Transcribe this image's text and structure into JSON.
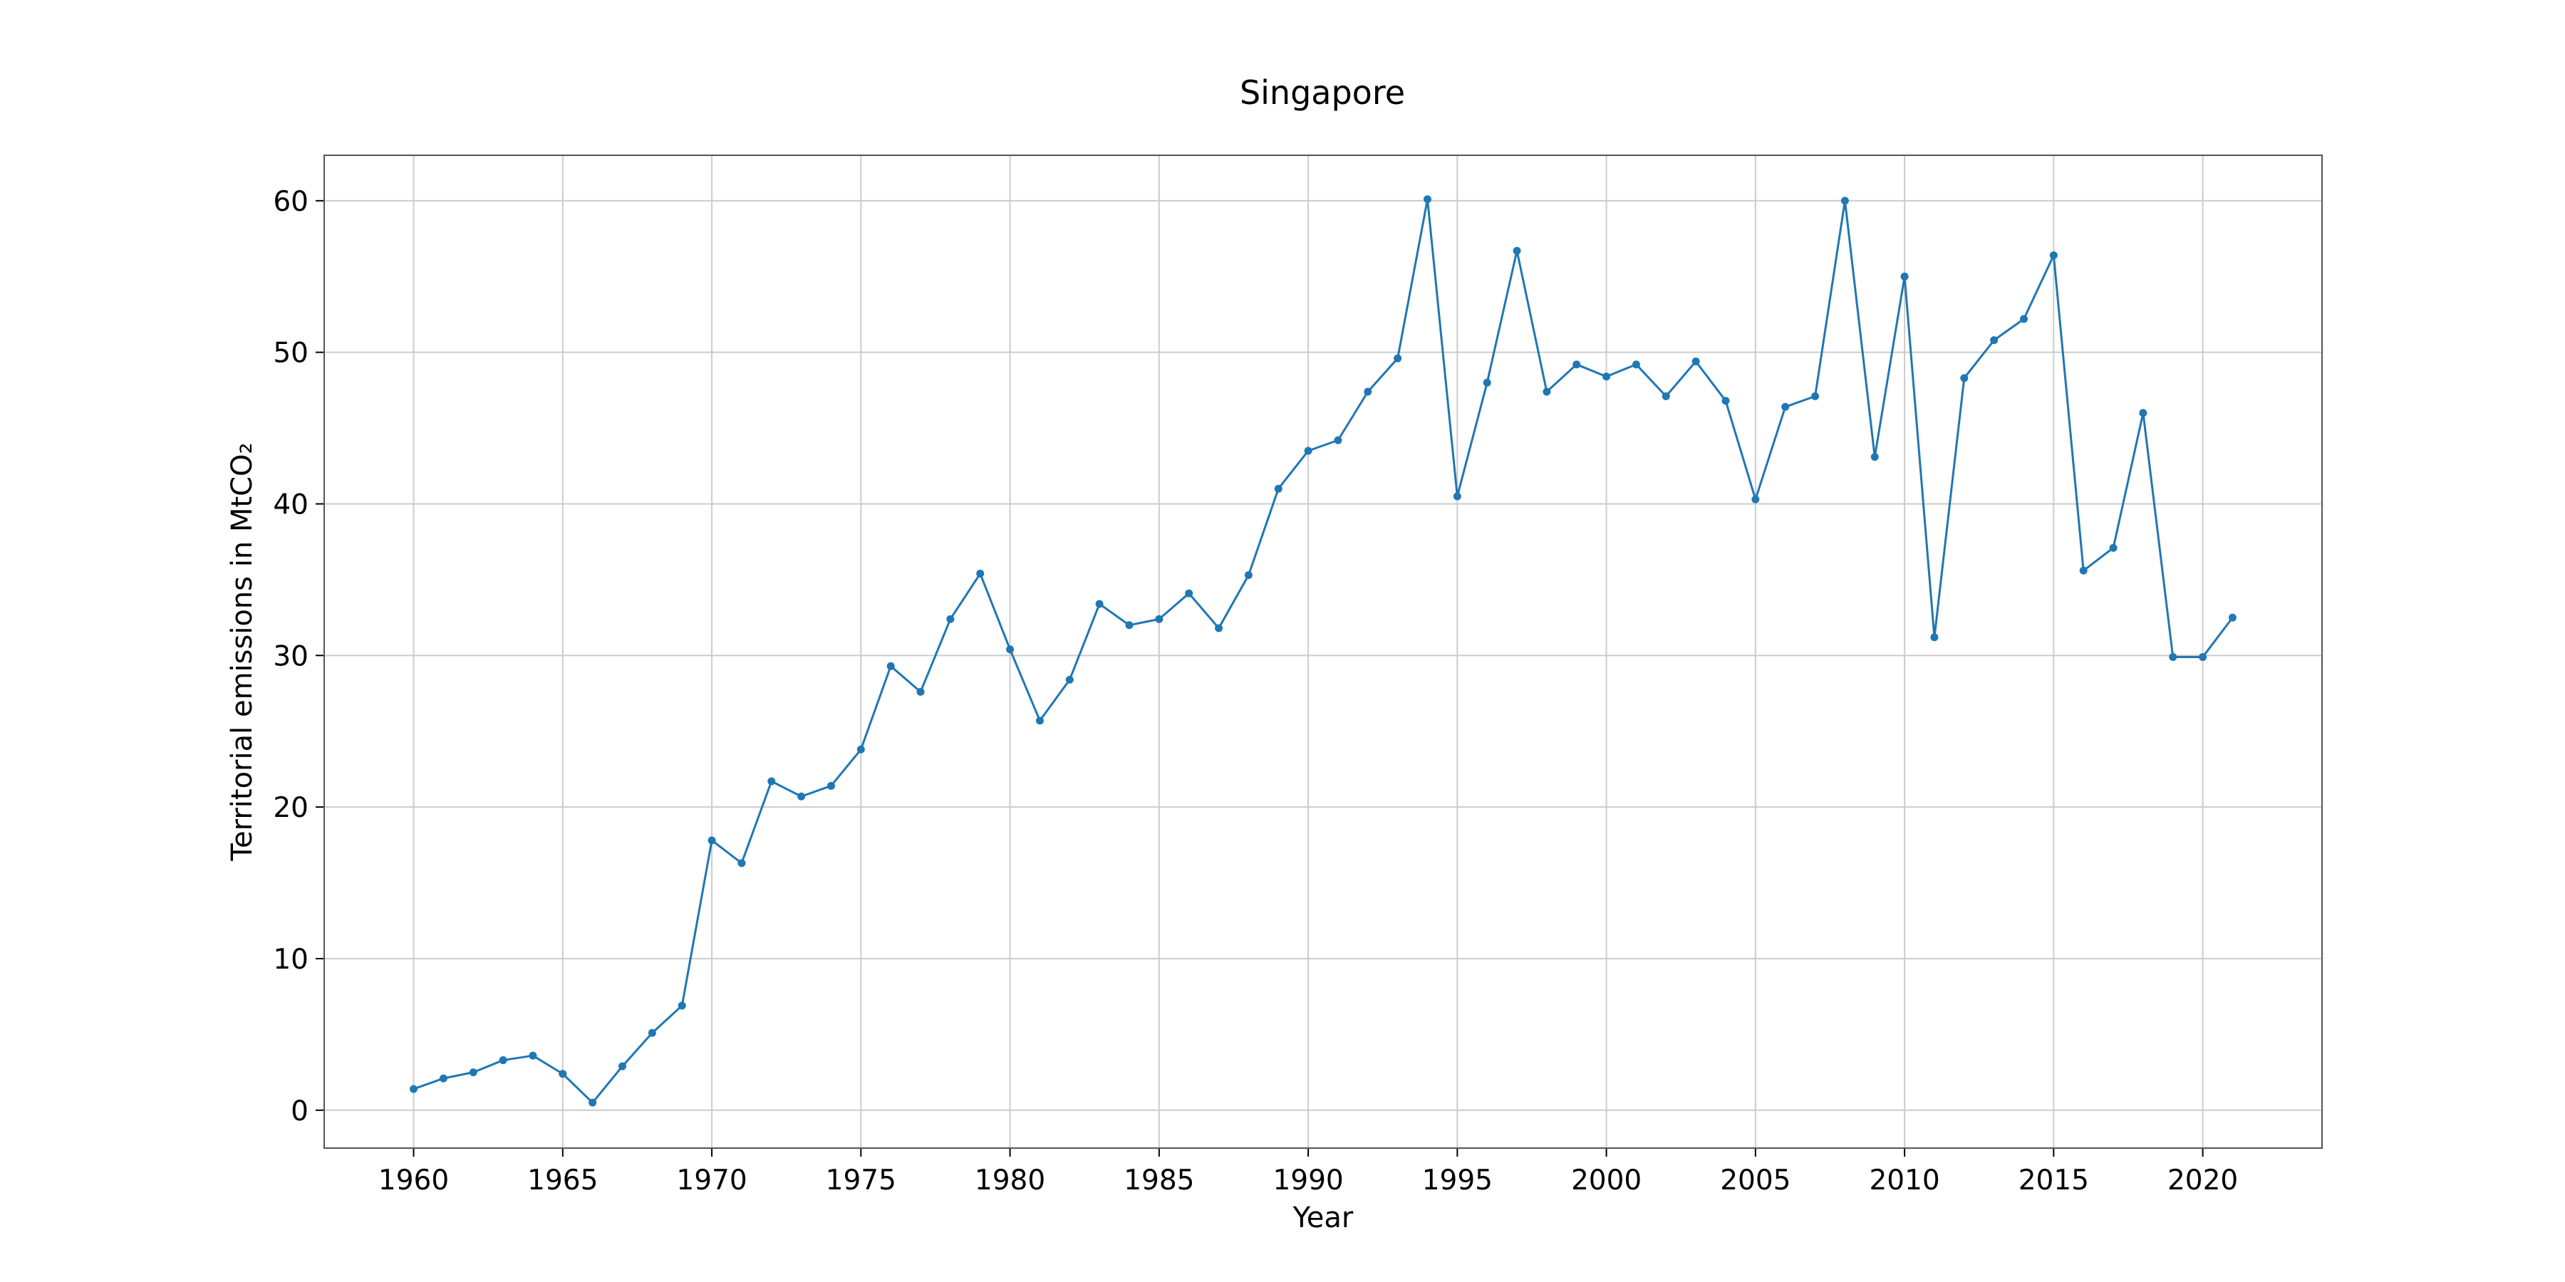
{
  "chart_data": {
    "type": "line",
    "title": "Singapore",
    "xlabel": "Year",
    "ylabel": "Territorial emissions in MtCO₂",
    "xlim": [
      1957,
      2024
    ],
    "ylim": [
      -2.5,
      63
    ],
    "xticks": [
      1960,
      1965,
      1970,
      1975,
      1980,
      1985,
      1990,
      1995,
      2000,
      2005,
      2010,
      2015,
      2020
    ],
    "yticks": [
      0,
      10,
      20,
      30,
      40,
      50,
      60
    ],
    "grid": true,
    "colors": {
      "series": "#1f77b4"
    },
    "x": [
      1960,
      1961,
      1962,
      1963,
      1964,
      1965,
      1966,
      1967,
      1968,
      1969,
      1970,
      1971,
      1972,
      1973,
      1974,
      1975,
      1976,
      1977,
      1978,
      1979,
      1980,
      1981,
      1982,
      1983,
      1984,
      1985,
      1986,
      1987,
      1988,
      1989,
      1990,
      1991,
      1992,
      1993,
      1994,
      1995,
      1996,
      1997,
      1998,
      1999,
      2000,
      2001,
      2002,
      2003,
      2004,
      2005,
      2006,
      2007,
      2008,
      2009,
      2010,
      2011,
      2012,
      2013,
      2014,
      2015,
      2016,
      2017,
      2018,
      2019,
      2020,
      2021
    ],
    "series": [
      {
        "values": [
          1.4,
          2.1,
          2.5,
          3.3,
          3.6,
          2.4,
          0.5,
          2.9,
          5.1,
          6.9,
          17.8,
          16.3,
          21.7,
          20.7,
          21.4,
          23.8,
          29.3,
          27.6,
          32.4,
          35.4,
          30.4,
          25.7,
          28.4,
          33.4,
          32.0,
          32.4,
          34.1,
          31.8,
          35.3,
          41.0,
          43.5,
          44.2,
          47.4,
          49.6,
          60.1,
          40.5,
          48.0,
          56.7,
          47.4,
          49.2,
          48.4,
          49.2,
          47.1,
          49.4,
          46.8,
          40.3,
          46.4,
          47.1,
          60.0,
          43.1,
          55.0,
          31.2,
          48.3,
          50.8,
          52.2,
          56.4,
          35.6,
          37.1,
          46.0,
          29.9,
          29.9,
          32.5
        ]
      }
    ]
  }
}
